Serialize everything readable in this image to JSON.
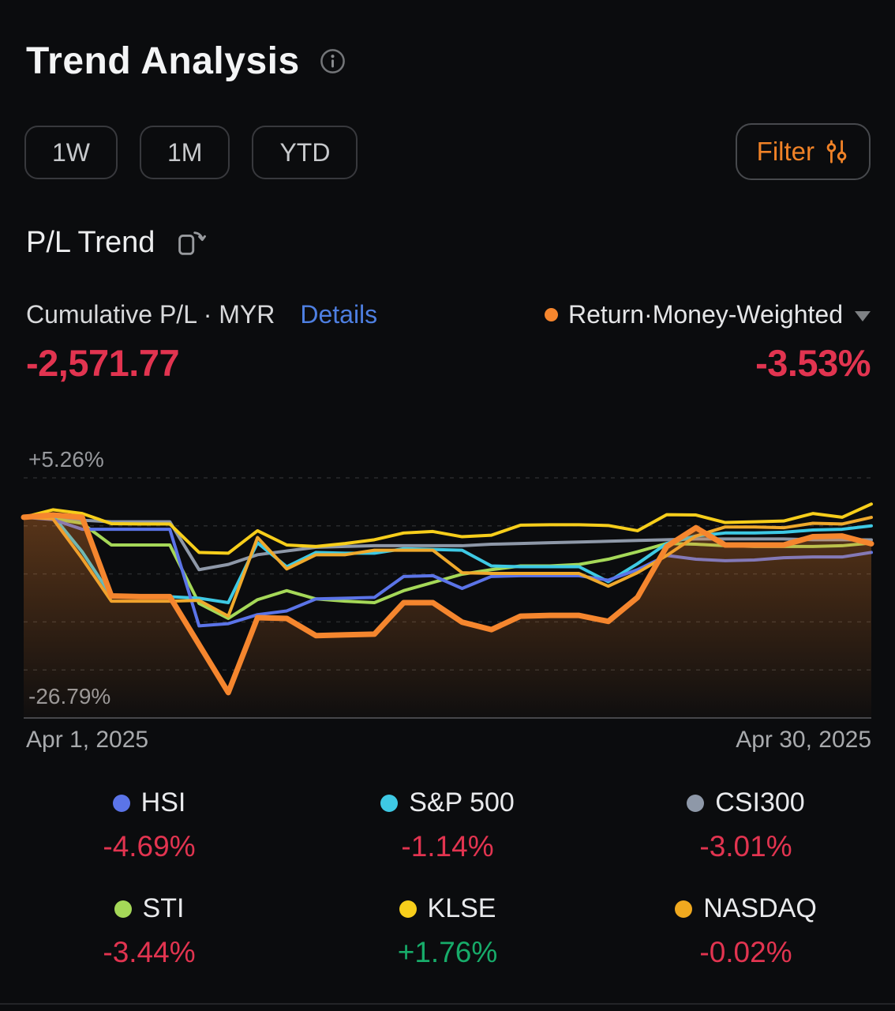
{
  "header": {
    "title": "Trend Analysis"
  },
  "filters": {
    "ranges": [
      "1W",
      "1M",
      "YTD"
    ],
    "filter_label": "Filter"
  },
  "section": {
    "title": "P/L Trend"
  },
  "summary": {
    "left_label": "Cumulative P/L · MYR",
    "details_label": "Details",
    "left_value": "-2,571.77",
    "right_label": "Return·Money-Weighted",
    "right_value": "-3.53%"
  },
  "chart": {
    "y_max_label": "+5.26%",
    "y_min_label": "-26.79%",
    "x_start_label": "Apr 1, 2025",
    "x_end_label": "Apr 30, 2025"
  },
  "chart_data": {
    "type": "line",
    "title": "P/L Trend",
    "x": [
      "Apr 1",
      "Apr 2",
      "Apr 3",
      "Apr 4",
      "Apr 5",
      "Apr 6",
      "Apr 7",
      "Apr 8",
      "Apr 9",
      "Apr 10",
      "Apr 11",
      "Apr 12",
      "Apr 13",
      "Apr 14",
      "Apr 15",
      "Apr 16",
      "Apr 17",
      "Apr 18",
      "Apr 19",
      "Apr 20",
      "Apr 21",
      "Apr 22",
      "Apr 23",
      "Apr 24",
      "Apr 25",
      "Apr 26",
      "Apr 27",
      "Apr 28",
      "Apr 29",
      "Apr 30"
    ],
    "ylim": [
      -26.79,
      5.26
    ],
    "y_axis_labels": [
      "+5.26%",
      "-26.79%"
    ],
    "gridlines": [
      5.26,
      -1.15,
      -7.56,
      -13.97,
      -20.38
    ],
    "baseline": -26.79,
    "grid_style": "dashed",
    "legend_position": "bottom",
    "unit": "percent",
    "series": [
      {
        "name": "CSI300",
        "color": "#8E98A8",
        "width": 4,
        "values": [
          0,
          -0.1,
          -0.4,
          -0.6,
          -0.6,
          -0.6,
          -7.0,
          -6.3,
          -5.0,
          -4.5,
          -4.0,
          -3.9,
          -3.8,
          -3.8,
          -3.8,
          -3.8,
          -3.6,
          -3.5,
          -3.4,
          -3.3,
          -3.2,
          -3.1,
          -3.0,
          -2.9,
          -2.9,
          -2.9,
          -2.9,
          -3.0,
          -3.0,
          -3.01
        ]
      },
      {
        "name": "STI",
        "color": "#A5D858",
        "width": 4,
        "values": [
          0,
          -0.2,
          -0.8,
          -3.7,
          -3.7,
          -3.7,
          -11.5,
          -13.5,
          -11.0,
          -9.8,
          -10.9,
          -11.2,
          -11.4,
          -9.8,
          -8.7,
          -7.6,
          -7.0,
          -6.5,
          -6.5,
          -6.3,
          -5.6,
          -4.6,
          -3.5,
          -3.6,
          -3.8,
          -3.9,
          -3.9,
          -3.9,
          -3.8,
          -3.44
        ]
      },
      {
        "name": "S&P 500",
        "color": "#3EC9E4",
        "width": 4,
        "values": [
          0,
          0.2,
          -4.6,
          -10.5,
          -10.6,
          -10.6,
          -10.8,
          -11.4,
          -3.4,
          -6.6,
          -4.7,
          -4.8,
          -4.8,
          -4.2,
          -4.3,
          -4.4,
          -6.5,
          -6.6,
          -6.6,
          -6.6,
          -8.6,
          -6.2,
          -3.5,
          -2.5,
          -2.1,
          -2.1,
          -2.0,
          -1.7,
          -1.6,
          -1.14
        ]
      },
      {
        "name": "HSI",
        "color": "#5B74E8",
        "width": 4,
        "values": [
          0,
          -0.3,
          -1.6,
          -1.6,
          -1.6,
          -1.6,
          -14.5,
          -14.2,
          -13.0,
          -12.5,
          -10.9,
          -10.8,
          -10.7,
          -7.9,
          -7.8,
          -9.5,
          -7.9,
          -7.8,
          -7.8,
          -7.8,
          -8.4,
          -7.0,
          -5.1,
          -5.6,
          -5.8,
          -5.7,
          -5.4,
          -5.3,
          -5.3,
          -4.69
        ]
      },
      {
        "name": "NASDAQ",
        "color": "#EFA92C",
        "width": 4,
        "values": [
          0,
          -0.2,
          -5.5,
          -11.2,
          -11.2,
          -11.2,
          -11.1,
          -13.2,
          -2.7,
          -6.9,
          -5.0,
          -5.0,
          -4.4,
          -4.4,
          -4.4,
          -7.4,
          -7.5,
          -7.5,
          -7.5,
          -7.5,
          -9.2,
          -7.4,
          -5.1,
          -2.5,
          -1.3,
          -1.3,
          -1.4,
          -0.8,
          -0.9,
          -0.02
        ]
      },
      {
        "name": "KLSE",
        "color": "#F7CE1B",
        "width": 4,
        "values": [
          0,
          1.0,
          0.5,
          -0.85,
          -0.9,
          -0.9,
          -4.7,
          -4.8,
          -1.8,
          -3.7,
          -3.9,
          -3.5,
          -3.0,
          -2.1,
          -1.9,
          -2.6,
          -2.4,
          -1.05,
          -1.0,
          -1.0,
          -1.1,
          -1.8,
          0.35,
          0.3,
          -0.7,
          -0.6,
          -0.5,
          0.5,
          0.0,
          1.76
        ]
      },
      {
        "name": "Return·Money-Weighted",
        "color": "#F5862E",
        "width": 7,
        "area": true,
        "values": [
          0,
          0.3,
          0,
          -10.5,
          -10.6,
          -10.6,
          -17.0,
          -23.4,
          -13.4,
          -13.5,
          -15.8,
          -15.7,
          -15.6,
          -11.4,
          -11.4,
          -14.0,
          -15.0,
          -13.2,
          -13.1,
          -13.1,
          -13.9,
          -10.7,
          -3.9,
          -1.4,
          -3.7,
          -3.7,
          -3.7,
          -2.6,
          -2.5,
          -3.53
        ]
      }
    ]
  },
  "legend": {
    "items": [
      {
        "name": "HSI",
        "value": "-4.69%",
        "color": "#5B74E8",
        "value_color": "#E23450"
      },
      {
        "name": "S&P 500",
        "value": "-1.14%",
        "color": "#3EC9E4",
        "value_color": "#E23450"
      },
      {
        "name": "CSI300",
        "value": "-3.01%",
        "color": "#8E98A8",
        "value_color": "#E23450"
      },
      {
        "name": "STI",
        "value": "-3.44%",
        "color": "#A5D858",
        "value_color": "#E23450"
      },
      {
        "name": "KLSE",
        "value": "+1.76%",
        "color": "#F7CE1B",
        "value_color": "#17AC6A"
      },
      {
        "name": "NASDAQ",
        "value": "-0.02%",
        "color": "#F0A91F",
        "value_color": "#E23450"
      }
    ]
  },
  "icons": [
    "info-icon",
    "filter-sliders-icon",
    "rotate-chart-icon",
    "chevron-down-icon"
  ],
  "colors": {
    "background": "#0B0C0E",
    "accent_orange": "#F08227",
    "portfolio_line": "#F5862E",
    "loss_red": "#E23450",
    "gain_green": "#17AC6A",
    "link_blue": "#4E7FE1"
  }
}
